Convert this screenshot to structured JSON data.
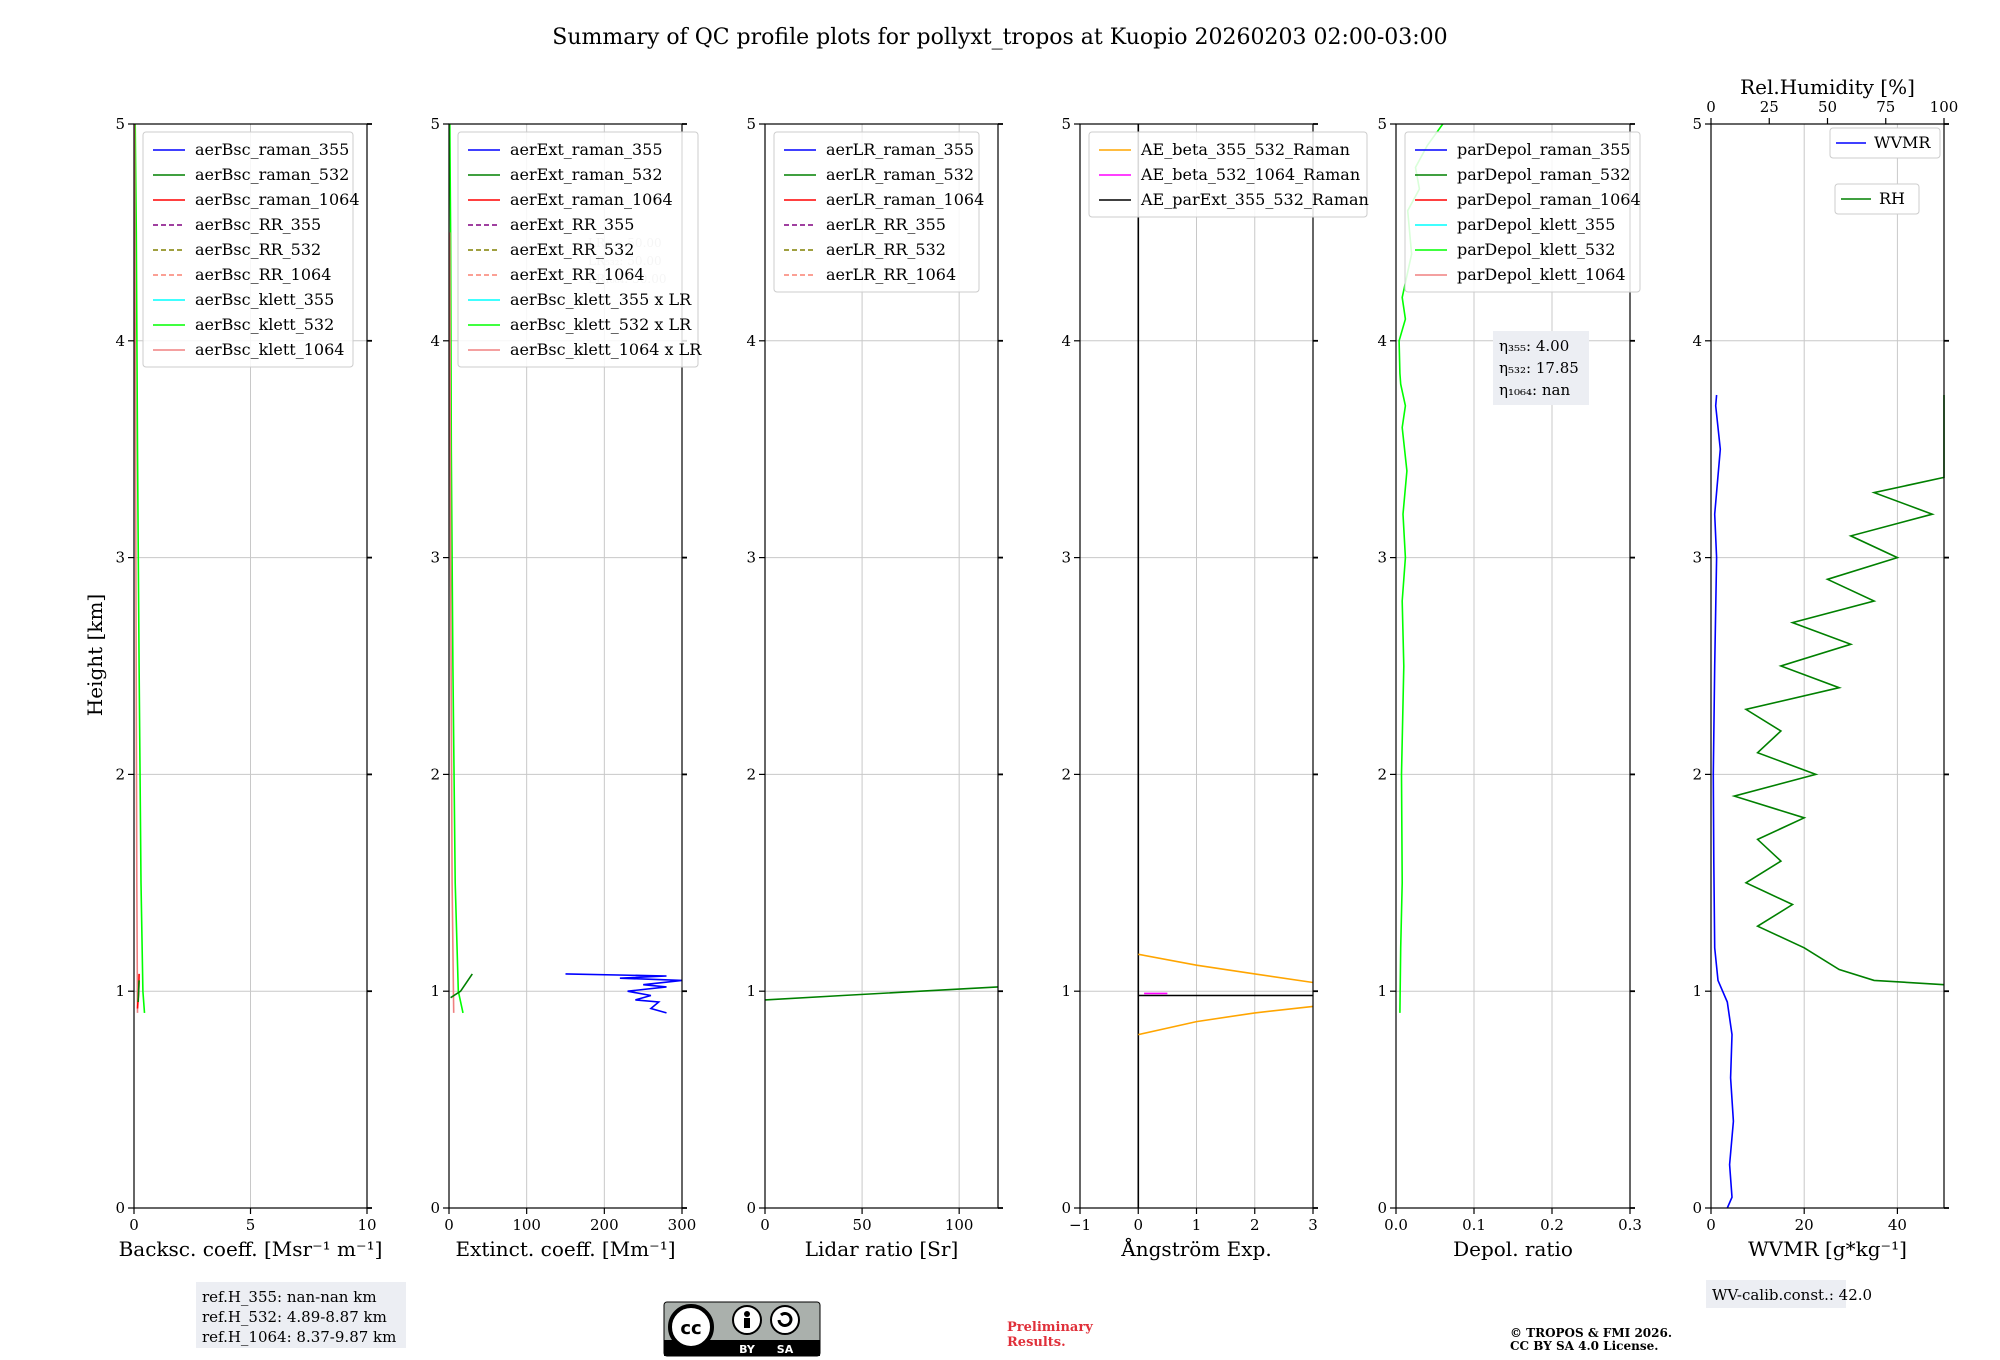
{
  "title": "Summary of QC profile plots for pollyxt_tropos at Kuopio 20260203 02:00-03:00",
  "ylabel": "Height [km]",
  "colors": {
    "blue": "#0000ff",
    "green": "#008000",
    "red": "#ff0000",
    "purple": "#800080",
    "olive": "#808000",
    "salmon": "#fa8072",
    "cyan": "#00ffff",
    "lime": "#00ff00",
    "lightcoral": "#f08080",
    "orange": "#ffa500",
    "magenta": "#ff00ff",
    "black": "#000000"
  },
  "chart_data": [
    {
      "type": "line",
      "id": "bsc",
      "xlabel": "Backsc. coeff. [Msr⁻¹ m⁻¹]",
      "xlim": [
        0,
        10
      ],
      "ylim": [
        0,
        5
      ],
      "xticks": [
        0,
        5,
        10
      ],
      "yticks": [
        0,
        1,
        2,
        3,
        4,
        5
      ],
      "legend": [
        {
          "label": "aerBsc_raman_355",
          "color": "blue",
          "dash": false
        },
        {
          "label": "aerBsc_raman_532",
          "color": "green",
          "dash": false
        },
        {
          "label": "aerBsc_raman_1064",
          "color": "red",
          "dash": false
        },
        {
          "label": "aerBsc_RR_355",
          "color": "purple",
          "dash": true
        },
        {
          "label": "aerBsc_RR_532",
          "color": "olive",
          "dash": true
        },
        {
          "label": "aerBsc_RR_1064",
          "color": "salmon",
          "dash": true
        },
        {
          "label": "aerBsc_klett_355",
          "color": "cyan",
          "dash": false
        },
        {
          "label": "aerBsc_klett_532",
          "color": "lime",
          "dash": false
        },
        {
          "label": "aerBsc_klett_1064",
          "color": "lightcoral",
          "dash": false
        }
      ],
      "series": [
        {
          "name": "aerBsc_klett_532",
          "color": "lime",
          "points": [
            [
              0.45,
              0.9
            ],
            [
              0.38,
              1.0
            ],
            [
              0.3,
              1.5
            ],
            [
              0.22,
              2.5
            ],
            [
              0.15,
              3.5
            ],
            [
              0.1,
              4.5
            ],
            [
              0.05,
              5.0
            ]
          ]
        },
        {
          "name": "aerBsc_klett_1064",
          "color": "lightcoral",
          "points": [
            [
              0.15,
              0.9
            ],
            [
              0.12,
              1.5
            ],
            [
              0.08,
              3.0
            ],
            [
              0.04,
              4.5
            ],
            [
              0.02,
              5.0
            ]
          ]
        },
        {
          "name": "aerBsc_raman_1064",
          "color": "red",
          "points": [
            [
              0.15,
              0.92
            ],
            [
              0.2,
              1.0
            ],
            [
              0.22,
              1.08
            ]
          ]
        },
        {
          "name": "aerBsc_raman_532",
          "color": "green",
          "points": [
            [
              0.18,
              0.95
            ],
            [
              0.22,
              1.05
            ]
          ]
        }
      ]
    },
    {
      "type": "line",
      "id": "ext",
      "xlabel": "Extinct. coeff. [Mm⁻¹]",
      "xlim": [
        0,
        300
      ],
      "ylim": [
        0,
        5
      ],
      "xticks": [
        0,
        100,
        200,
        300
      ],
      "yticks": [
        0,
        1,
        2,
        3,
        4,
        5
      ],
      "legend": [
        {
          "label": "aerExt_raman_355",
          "color": "blue",
          "dash": false
        },
        {
          "label": "aerExt_raman_532",
          "color": "green",
          "dash": false
        },
        {
          "label": "aerExt_raman_1064",
          "color": "red",
          "dash": false
        },
        {
          "label": "aerExt_RR_355",
          "color": "purple",
          "dash": true
        },
        {
          "label": "aerExt_RR_532",
          "color": "olive",
          "dash": true
        },
        {
          "label": "aerExt_RR_1064",
          "color": "salmon",
          "dash": true
        },
        {
          "label": "aerBsc_klett_355 x LR",
          "color": "cyan",
          "dash": false
        },
        {
          "label": "aerBsc_klett_532 x LR",
          "color": "lime",
          "dash": false
        },
        {
          "label": "aerBsc_klett_1064 x LR",
          "color": "lightcoral",
          "dash": false
        }
      ],
      "lr_note": [
        "LR₃₅₅: 50.00",
        "LR₅₃₂: 50.00",
        "LR₁₀₆₄: 50.00"
      ],
      "series": [
        {
          "name": "aerBsc_klett_532 x LR",
          "color": "lime",
          "points": [
            [
              18,
              0.9
            ],
            [
              12,
              1.0
            ],
            [
              8,
              1.5
            ],
            [
              5,
              2.5
            ],
            [
              3,
              3.5
            ],
            [
              2,
              4.5
            ],
            [
              1,
              5.0
            ]
          ]
        },
        {
          "name": "aerBsc_klett_1064 x LR",
          "color": "lightcoral",
          "points": [
            [
              6,
              0.9
            ],
            [
              4,
              1.5
            ],
            [
              2,
              3.0
            ],
            [
              1,
              4.5
            ]
          ]
        },
        {
          "name": "aerExt_raman_532",
          "color": "green",
          "points": [
            [
              2,
              0.97
            ],
            [
              15,
              1.0
            ],
            [
              30,
              1.08
            ]
          ]
        },
        {
          "name": "aerExt_raman_355",
          "color": "blue",
          "points": [
            [
              280,
              0.9
            ],
            [
              260,
              0.92
            ],
            [
              270,
              0.95
            ],
            [
              240,
              0.96
            ],
            [
              260,
              0.98
            ],
            [
              230,
              1.0
            ],
            [
              280,
              1.02
            ],
            [
              250,
              1.03
            ],
            [
              300,
              1.05
            ],
            [
              220,
              1.06
            ],
            [
              280,
              1.07
            ],
            [
              150,
              1.08
            ]
          ]
        }
      ]
    },
    {
      "type": "line",
      "id": "lr",
      "xlabel": "Lidar ratio [Sr]",
      "xlim": [
        0,
        120
      ],
      "ylim": [
        0,
        5
      ],
      "xticks": [
        0,
        50,
        100
      ],
      "yticks": [
        0,
        1,
        2,
        3,
        4,
        5
      ],
      "legend": [
        {
          "label": "aerLR_raman_355",
          "color": "blue",
          "dash": false
        },
        {
          "label": "aerLR_raman_532",
          "color": "green",
          "dash": false
        },
        {
          "label": "aerLR_raman_1064",
          "color": "red",
          "dash": false
        },
        {
          "label": "aerLR_RR_355",
          "color": "purple",
          "dash": true
        },
        {
          "label": "aerLR_RR_532",
          "color": "olive",
          "dash": true
        },
        {
          "label": "aerLR_RR_1064",
          "color": "salmon",
          "dash": true
        }
      ],
      "series": [
        {
          "name": "aerLR_raman_532",
          "color": "green",
          "points": [
            [
              0,
              0.96
            ],
            [
              40,
              0.98
            ],
            [
              80,
              1.0
            ],
            [
              120,
              1.02
            ]
          ]
        }
      ]
    },
    {
      "type": "line",
      "id": "ae",
      "xlabel": "Ångström Exp.",
      "xlim": [
        -1,
        3
      ],
      "ylim": [
        0,
        5
      ],
      "xticks": [
        -1,
        0,
        1,
        2,
        3
      ],
      "yticks": [
        0,
        1,
        2,
        3,
        4,
        5
      ],
      "legend": [
        {
          "label": "AE_beta_355_532_Raman",
          "color": "orange",
          "dash": false
        },
        {
          "label": "AE_beta_532_1064_Raman",
          "color": "magenta",
          "dash": false
        },
        {
          "label": "AE_parExt_355_532_Raman",
          "color": "black",
          "dash": false
        }
      ],
      "series": [
        {
          "name": "AE_parExt_355_532_Raman",
          "color": "black",
          "points": [
            [
              0,
              0
            ],
            [
              0,
              5
            ]
          ]
        },
        {
          "name": "AE_parExt_355_532_Raman",
          "color": "black",
          "points": [
            [
              0,
              0.98
            ],
            [
              3,
              0.98
            ]
          ]
        },
        {
          "name": "AE_beta_355_532_Raman",
          "color": "orange",
          "points": [
            [
              0,
              1.17
            ],
            [
              1,
              1.12
            ],
            [
              2,
              1.08
            ],
            [
              3,
              1.04
            ]
          ]
        },
        {
          "name": "AE_beta_355_532_Raman",
          "color": "orange",
          "points": [
            [
              0,
              0.8
            ],
            [
              1,
              0.86
            ],
            [
              2,
              0.9
            ],
            [
              3,
              0.93
            ]
          ]
        },
        {
          "name": "AE_beta_532_1064_Raman",
          "color": "magenta",
          "points": [
            [
              0.1,
              0.99
            ],
            [
              0.5,
              0.99
            ]
          ]
        }
      ]
    },
    {
      "type": "line",
      "id": "depol",
      "xlabel": "Depol. ratio",
      "xlim": [
        0,
        0.3
      ],
      "ylim": [
        0,
        5
      ],
      "xticks": [
        0.0,
        0.1,
        0.2,
        0.3
      ],
      "tick_labels": [
        "0.0",
        "0.1",
        "0.2",
        "0.3"
      ],
      "yticks": [
        0,
        1,
        2,
        3,
        4,
        5
      ],
      "legend": [
        {
          "label": "parDepol_raman_355",
          "color": "blue",
          "dash": false
        },
        {
          "label": "parDepol_raman_532",
          "color": "green",
          "dash": false
        },
        {
          "label": "parDepol_raman_1064",
          "color": "red",
          "dash": false
        },
        {
          "label": "parDepol_klett_355",
          "color": "cyan",
          "dash": false
        },
        {
          "label": "parDepol_klett_532",
          "color": "lime",
          "dash": false
        },
        {
          "label": "parDepol_klett_1064",
          "color": "lightcoral",
          "dash": false
        }
      ],
      "eta": [
        "η₃₅₅: 4.00",
        "η₅₃₂: 17.85",
        "η₁₀₆₄: nan"
      ],
      "series": [
        {
          "name": "parDepol_klett_532",
          "color": "lime",
          "points": [
            [
              0.005,
              0.9
            ],
            [
              0.006,
              1.2
            ],
            [
              0.008,
              1.5
            ],
            [
              0.007,
              2.0
            ],
            [
              0.01,
              2.5
            ],
            [
              0.008,
              2.8
            ],
            [
              0.012,
              3.0
            ],
            [
              0.009,
              3.2
            ],
            [
              0.014,
              3.4
            ],
            [
              0.008,
              3.6
            ],
            [
              0.012,
              3.7
            ],
            [
              0.006,
              3.8
            ],
            [
              0.005,
              3.85
            ],
            [
              0.004,
              4.0
            ],
            [
              0.012,
              4.1
            ],
            [
              0.008,
              4.2
            ],
            [
              0.02,
              4.4
            ],
            [
              0.015,
              4.6
            ],
            [
              0.03,
              4.7
            ],
            [
              0.025,
              4.8
            ],
            [
              0.04,
              4.9
            ],
            [
              0.05,
              4.95
            ],
            [
              0.06,
              5.0
            ]
          ]
        }
      ]
    },
    {
      "type": "line",
      "id": "wv",
      "xlabel": "WVMR [g*kg⁻¹]",
      "xlim": [
        0,
        50
      ],
      "ylim": [
        0,
        5
      ],
      "xticks": [
        0,
        20,
        40
      ],
      "yticks": [
        0,
        1,
        2,
        3,
        4,
        5
      ],
      "x2label": "Rel.Humidity [%]",
      "x2lim": [
        0,
        100
      ],
      "x2ticks": [
        0,
        25,
        50,
        75,
        100
      ],
      "legend": [
        {
          "label": "WVMR",
          "color": "blue",
          "dash": false
        },
        {
          "label": "RH",
          "color": "green",
          "dash": false
        }
      ],
      "series": [
        {
          "name": "WVMR",
          "color": "blue",
          "points": [
            [
              3.5,
              0.0
            ],
            [
              4.5,
              0.05
            ],
            [
              4.0,
              0.2
            ],
            [
              4.8,
              0.4
            ],
            [
              4.2,
              0.6
            ],
            [
              4.5,
              0.8
            ],
            [
              3.5,
              0.95
            ],
            [
              1.5,
              1.05
            ],
            [
              0.8,
              1.2
            ],
            [
              0.6,
              1.6
            ],
            [
              0.5,
              2.0
            ],
            [
              0.8,
              2.5
            ],
            [
              1.2,
              3.0
            ],
            [
              0.8,
              3.2
            ],
            [
              2.0,
              3.5
            ],
            [
              1.0,
              3.7
            ],
            [
              1.2,
              3.75
            ]
          ]
        },
        {
          "name": "RH",
          "color": "green",
          "axis": "x2",
          "points": [
            [
              100,
              1.03
            ],
            [
              70,
              1.05
            ],
            [
              55,
              1.1
            ],
            [
              40,
              1.2
            ],
            [
              20,
              1.3
            ],
            [
              35,
              1.4
            ],
            [
              15,
              1.5
            ],
            [
              30,
              1.6
            ],
            [
              20,
              1.7
            ],
            [
              40,
              1.8
            ],
            [
              10,
              1.9
            ],
            [
              45,
              2.0
            ],
            [
              20,
              2.1
            ],
            [
              30,
              2.2
            ],
            [
              15,
              2.3
            ],
            [
              55,
              2.4
            ],
            [
              30,
              2.5
            ],
            [
              60,
              2.6
            ],
            [
              35,
              2.7
            ],
            [
              70,
              2.8
            ],
            [
              50,
              2.9
            ],
            [
              80,
              3.0
            ],
            [
              60,
              3.1
            ],
            [
              95,
              3.2
            ],
            [
              70,
              3.3
            ],
            [
              100,
              3.37
            ],
            [
              100,
              3.75
            ]
          ]
        }
      ]
    }
  ],
  "refH": [
    "ref.H_355: nan-nan km",
    "ref.H_532: 4.89-8.87 km",
    "ref.H_1064: 8.37-9.87 km"
  ],
  "wv_calib": "WV-calib.const.: 42.0",
  "preliminary": [
    "Preliminary",
    "Results."
  ],
  "copyright": [
    "© TROPOS & FMI 2026.",
    "CC BY SA 4.0 License."
  ],
  "cc_badge": {
    "by": "BY",
    "sa": "SA"
  }
}
